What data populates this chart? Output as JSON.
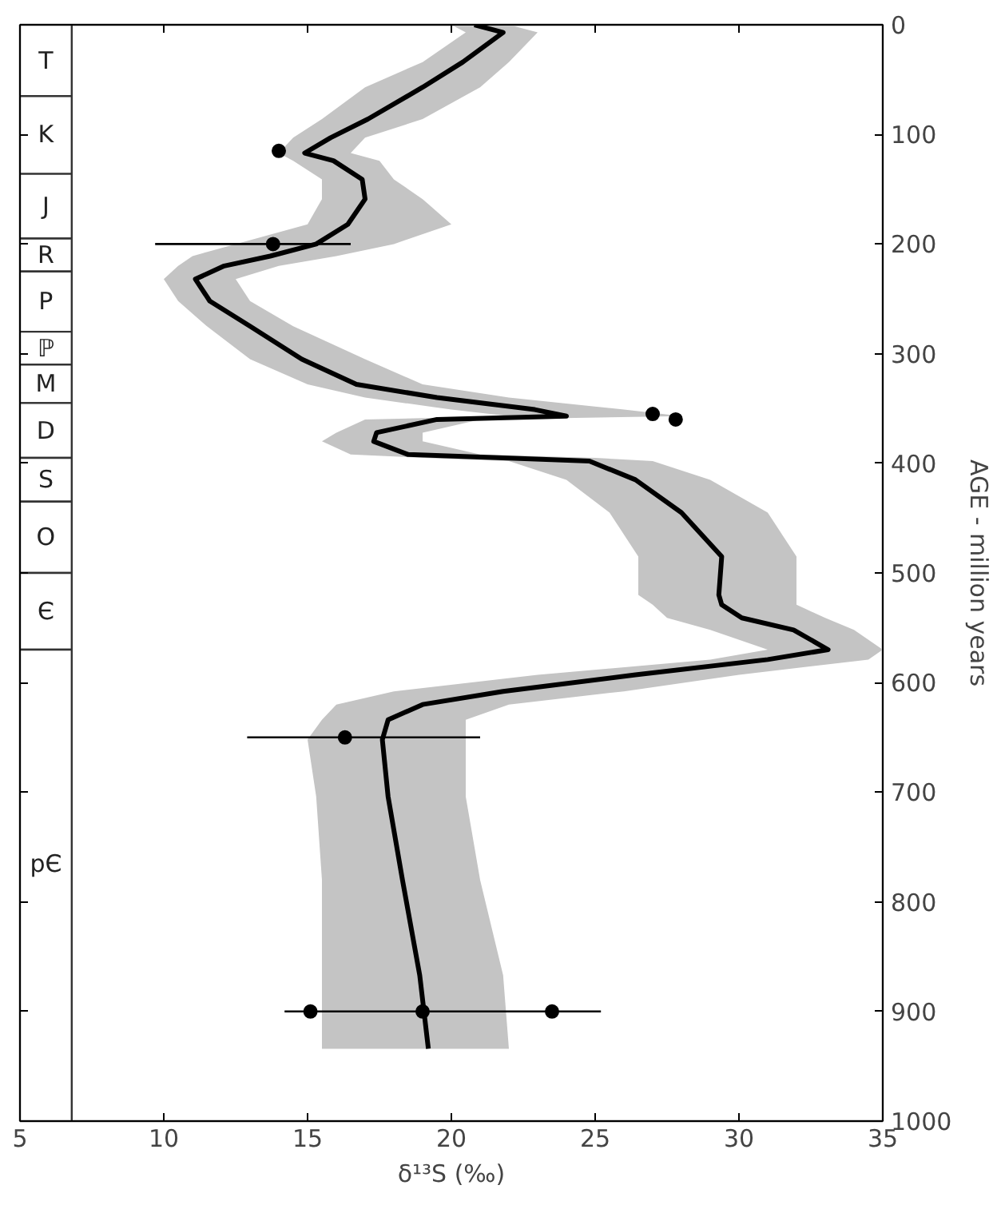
{
  "chart_data": {
    "type": "line",
    "orientation": "horizontal",
    "xlabel": "δ¹³S (‰)",
    "ylabel": "AGE - million years",
    "xlim": [
      5,
      35
    ],
    "xticks": [
      5,
      10,
      15,
      20,
      25,
      30,
      35
    ],
    "ylim": [
      1000,
      0
    ],
    "yticks": [
      0,
      100,
      200,
      300,
      400,
      500,
      600,
      700,
      800,
      900,
      1000
    ],
    "series": [
      {
        "color": "#000000",
        "x": [
          0,
          7,
          34,
          57,
          86,
          103,
          117,
          124,
          141,
          159,
          182,
          200,
          211,
          220,
          232,
          252,
          275,
          305,
          328,
          340,
          351,
          357,
          360,
          372,
          380,
          392,
          395,
          398,
          415,
          445,
          485,
          520,
          529,
          541,
          552,
          570,
          579,
          593,
          608,
          620,
          634,
          652,
          704,
          780,
          867,
          934
        ],
        "values": [
          20.8,
          21.8,
          20.4,
          19.0,
          17.1,
          15.8,
          14.9,
          15.9,
          16.9,
          17.0,
          16.4,
          15.3,
          13.7,
          12.1,
          11.1,
          11.6,
          13.0,
          14.8,
          16.7,
          19.5,
          22.9,
          24.0,
          19.5,
          17.4,
          17.3,
          18.5,
          21.8,
          24.8,
          26.4,
          28.0,
          29.4,
          29.3,
          29.4,
          30.1,
          31.9,
          33.1,
          31.0,
          26.4,
          21.8,
          19.0,
          17.8,
          17.6,
          17.8,
          18.3,
          18.9,
          19.2
        ],
        "lower": [
          20,
          20.5,
          19,
          17,
          15.5,
          14.5,
          14,
          14.5,
          15.5,
          15.5,
          15,
          12.5,
          11,
          10.5,
          10,
          10.5,
          11.5,
          13,
          15,
          17,
          20,
          22,
          17,
          16,
          15.5,
          16.5,
          19,
          22,
          24,
          25.5,
          26.5,
          26.5,
          27,
          27.5,
          29,
          31,
          29,
          23,
          18,
          16,
          15.5,
          15,
          15.3,
          15.5,
          15.5,
          15.5
        ],
        "upper": [
          22,
          23,
          22,
          21,
          19,
          17,
          16.5,
          17.5,
          18,
          19,
          20,
          18,
          16,
          14,
          12.5,
          13,
          14.5,
          17,
          19,
          22,
          26,
          28,
          21,
          19,
          19,
          21,
          25,
          27,
          29,
          31,
          32,
          32,
          32,
          33,
          34,
          35,
          34.5,
          30,
          26,
          22,
          20.5,
          20.5,
          20.5,
          21,
          21.8,
          22
        ]
      },
      {
        "type": "scatter",
        "color": "#000000",
        "marker": "circle",
        "x": [
          650,
          900,
          900,
          900,
          360,
          115,
          200,
          355
        ],
        "values": [
          16.3,
          15.1,
          19.0,
          23.5,
          27.8,
          14.0,
          13.8,
          27.0
        ],
        "errors": [
          [
            12.9,
            21.0
          ],
          null,
          [
            14.2,
            25.2
          ],
          null,
          null,
          null,
          [
            9.7,
            16.5
          ],
          null
        ]
      }
    ],
    "bands": [
      {
        "axis": "y",
        "from": 0,
        "to": 65,
        "label": "T"
      },
      {
        "axis": "y",
        "from": 65,
        "to": 136,
        "label": "K"
      },
      {
        "axis": "y",
        "from": 136,
        "to": 195,
        "label": "J"
      },
      {
        "axis": "y",
        "from": 195,
        "to": 225,
        "label": "R"
      },
      {
        "axis": "y",
        "from": 225,
        "to": 280,
        "label": "P"
      },
      {
        "axis": "y",
        "from": 280,
        "to": 310,
        "label": "ℙ"
      },
      {
        "axis": "y",
        "from": 310,
        "to": 345,
        "label": "M"
      },
      {
        "axis": "y",
        "from": 345,
        "to": 395,
        "label": "D"
      },
      {
        "axis": "y",
        "from": 395,
        "to": 435,
        "label": "S"
      },
      {
        "axis": "y",
        "from": 435,
        "to": 500,
        "label": "O"
      },
      {
        "axis": "y",
        "from": 500,
        "to": 570,
        "label": "Є"
      },
      {
        "axis": "y",
        "from": 570,
        "to": 1000,
        "label": "pЄ"
      }
    ]
  }
}
